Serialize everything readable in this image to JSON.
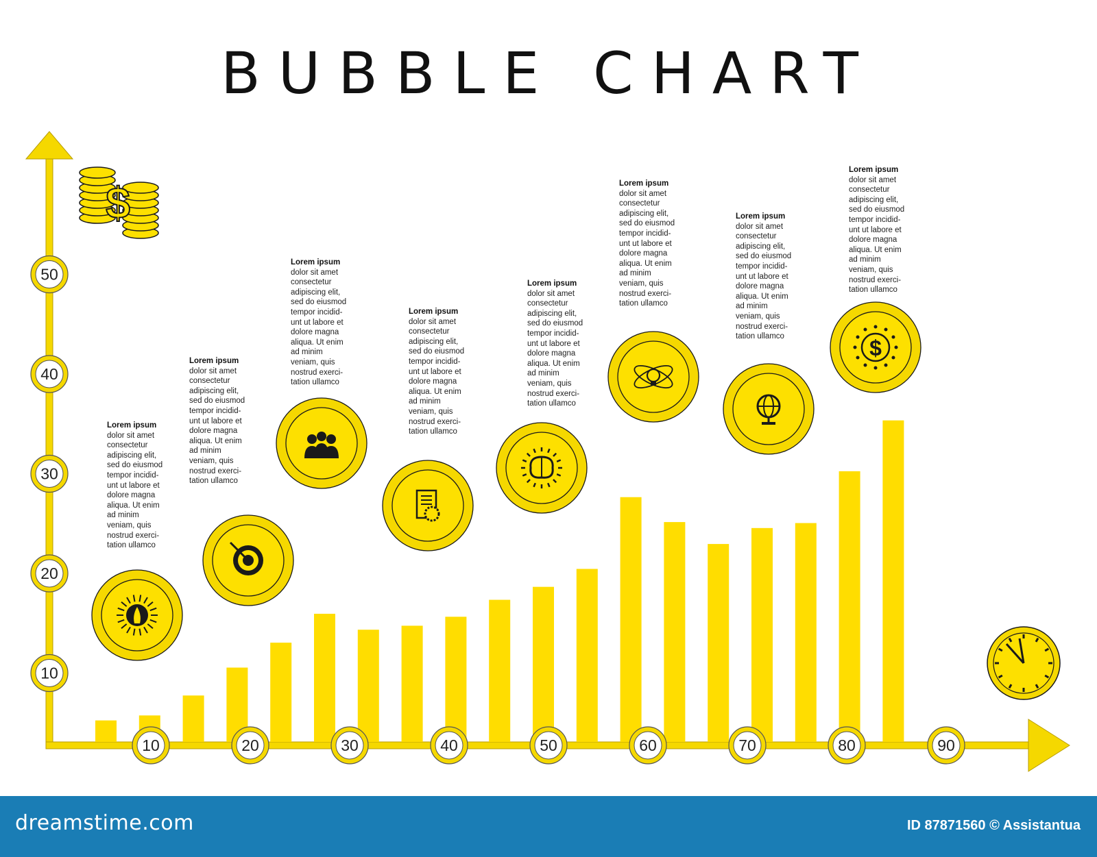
{
  "title": "BUBBLE CHART",
  "chart_data": {
    "type": "bar",
    "title": "BUBBLE CHART",
    "xlabel": "",
    "ylabel": "",
    "x_ticks": [
      "10",
      "20",
      "30",
      "40",
      "50",
      "60",
      "70",
      "80",
      "90"
    ],
    "y_ticks": [
      "10",
      "20",
      "30",
      "40",
      "50"
    ],
    "values": [
      2.5,
      3,
      5,
      7.8,
      10.3,
      13.2,
      11.6,
      12,
      12.9,
      14.6,
      15.9,
      17.7,
      24.9,
      22.4,
      20.2,
      21.8,
      22.3,
      27.5,
      32.6
    ],
    "bubbles": [
      {
        "icon": "rocket-icon"
      },
      {
        "icon": "target-icon"
      },
      {
        "icon": "team-icon"
      },
      {
        "icon": "document-gear-icon"
      },
      {
        "icon": "brain-icon"
      },
      {
        "icon": "atom-bulb-icon"
      },
      {
        "icon": "globe-icon"
      },
      {
        "icon": "dollar-icon"
      }
    ],
    "axis_icons": {
      "y": "coins-icon",
      "x": "clock-icon"
    },
    "colors": {
      "bar": "#ffdd00",
      "axis": "#f5d800",
      "bubble_outer": "#f5d800",
      "bubble_inner": "#fde000",
      "outline": "#1a1a1a"
    }
  },
  "text_blocks": [
    {
      "heading": "Lorem ipsum",
      "body": "dolor sit amet\nconsectetur\nadipiscing elit,\nsed do eiusmod\ntempor incidid-\nunt ut labore et\ndolore magna\naliqua. Ut enim\nad minim\nveniam, quis\nnostrud exerci-\ntation ullamco"
    },
    {
      "heading": "Lorem ipsum",
      "body": "dolor sit amet\nconsectetur\nadipiscing elit,\nsed do eiusmod\ntempor incidid-\nunt ut labore et\ndolore magna\naliqua. Ut enim\nad minim\nveniam, quis\nnostrud exerci-\ntation ullamco"
    },
    {
      "heading": "Lorem ipsum",
      "body": "dolor sit amet\nconsectetur\nadipiscing elit,\nsed do eiusmod\ntempor incidid-\nunt ut labore et\ndolore magna\naliqua. Ut enim\nad minim\nveniam, quis\nnostrud exerci-\ntation ullamco"
    },
    {
      "heading": "Lorem ipsum",
      "body": "dolor sit amet\nconsectetur\nadipiscing elit,\nsed do eiusmod\ntempor incidid-\nunt ut labore et\ndolore magna\naliqua. Ut enim\nad minim\nveniam, quis\nnostrud exerci-\ntation ullamco"
    },
    {
      "heading": "Lorem ipsum",
      "body": "dolor sit amet\nconsectetur\nadipiscing elit,\nsed do eiusmod\ntempor incidid-\nunt ut labore et\ndolore magna\naliqua. Ut enim\nad minim\nveniam, quis\nnostrud exerci-\ntation ullamco"
    },
    {
      "heading": "Lorem ipsum",
      "body": "dolor sit amet\nconsectetur\nadipiscing elit,\nsed do eiusmod\ntempor incidid-\nunt ut labore et\ndolore magna\naliqua. Ut enim\nad minim\nveniam, quis\nnostrud exerci-\ntation ullamco"
    },
    {
      "heading": "Lorem ipsum",
      "body": "dolor sit amet\nconsectetur\nadipiscing elit,\nsed do eiusmod\ntempor incidid-\nunt ut labore et\ndolore magna\naliqua. Ut enim\nad minim\nveniam, quis\nnostrud exerci-\ntation ullamco"
    },
    {
      "heading": "Lorem ipsum",
      "body": "dolor sit amet\nconsectetur\nadipiscing elit,\nsed do eiusmod\ntempor incidid-\nunt ut labore et\ndolore magna\naliqua. Ut enim\nad minim\nveniam, quis\nnostrud exerci-\ntation ullamco"
    }
  ],
  "footer": {
    "brand": "dreamstime.com",
    "credit": "ID 87871560 © Assistantua"
  }
}
